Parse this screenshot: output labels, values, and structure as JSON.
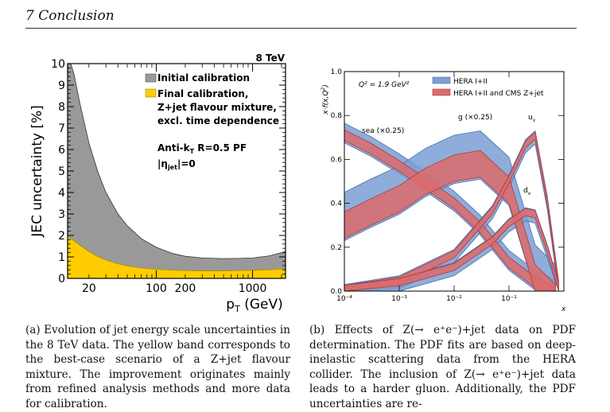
{
  "header": {
    "section": "7 Conclusion"
  },
  "figure_a": {
    "energy_label": "8 TeV",
    "ylabel": "JEC uncertainty [%]",
    "xlabel": "p_T (GeV)",
    "legend": [
      {
        "label": "Initial calibration",
        "color": "#999999"
      },
      {
        "label": "Final calibration,",
        "color": "#ffcc00"
      }
    ],
    "legend_cont": [
      "Z+jet flavour mixture,",
      "excl. time dependence"
    ],
    "algo": "Anti-k_T R=0.5 PF",
    "eta": "|η_jet|=0",
    "y_ticks": [
      "0",
      "1",
      "2",
      "3",
      "4",
      "5",
      "6",
      "7",
      "8",
      "9",
      "10"
    ],
    "x_ticks": [
      "20",
      "100",
      "200",
      "1000"
    ]
  },
  "figure_b": {
    "q2_label": "Q² = 1.9 GeV²",
    "ylabel": "x·f(x,Q²)",
    "xlabel": "x",
    "legend": [
      {
        "label": "HERA I+II",
        "color": "#7b9fd4"
      },
      {
        "label": "HERA I+II and CMS Z+jet",
        "color": "#dc6b6b"
      }
    ],
    "curve_labels": [
      "sea (×0.25)",
      "g (×0.25)",
      "u_v",
      "d_v"
    ],
    "y_ticks": [
      "0.0",
      "0.2",
      "0.4",
      "0.6",
      "0.8",
      "1.0"
    ],
    "x_ticks": [
      "10⁻⁴",
      "10⁻³",
      "10⁻²",
      "10⁻¹"
    ]
  },
  "chart_data": [
    {
      "type": "area",
      "title": "8 TeV",
      "xlabel": "p_T (GeV)",
      "ylabel": "JEC uncertainty [%]",
      "xscale": "log",
      "xlim": [
        12,
        2200
      ],
      "ylim": [
        0,
        10
      ],
      "series": [
        {
          "name": "Initial calibration",
          "x": [
            12,
            14,
            16,
            20,
            25,
            30,
            40,
            50,
            70,
            100,
            150,
            200,
            300,
            500,
            700,
            1000,
            1500,
            2200
          ],
          "values": [
            10.5,
            9.5,
            8.2,
            6.3,
            4.9,
            4.0,
            3.0,
            2.45,
            1.85,
            1.45,
            1.15,
            1.03,
            0.95,
            0.92,
            0.93,
            0.95,
            1.05,
            1.25
          ]
        },
        {
          "name": "Final calibration, Z+jet flavour mixture, excl. time dependence",
          "x": [
            12,
            14,
            16,
            20,
            25,
            30,
            40,
            50,
            70,
            100,
            150,
            200,
            300,
            500,
            700,
            1000,
            1500,
            2200
          ],
          "values": [
            1.95,
            1.75,
            1.55,
            1.25,
            1.0,
            0.85,
            0.68,
            0.58,
            0.48,
            0.42,
            0.38,
            0.36,
            0.35,
            0.35,
            0.36,
            0.38,
            0.4,
            0.45
          ]
        }
      ]
    },
    {
      "type": "line",
      "xlabel": "x",
      "ylabel": "x·f(x,Q²)",
      "xscale": "log",
      "xlim": [
        0.0001,
        1
      ],
      "ylim": [
        0,
        1.0
      ],
      "series": [
        {
          "name": "sea (×0.25) HERA I+II",
          "x": [
            0.0001,
            0.0003,
            0.001,
            0.003,
            0.01,
            0.03,
            0.1,
            0.3,
            0.7
          ],
          "values": [
            0.72,
            0.66,
            0.58,
            0.5,
            0.41,
            0.3,
            0.14,
            0.05,
            0.005
          ]
        },
        {
          "name": "g (×0.25) HERA I+II",
          "x": [
            0.0001,
            0.0003,
            0.001,
            0.003,
            0.01,
            0.03,
            0.1,
            0.3,
            0.7
          ],
          "values": [
            0.34,
            0.4,
            0.46,
            0.54,
            0.6,
            0.62,
            0.5,
            0.1,
            0.01
          ]
        },
        {
          "name": "u_v HERA I+II",
          "x": [
            0.0001,
            0.001,
            0.01,
            0.05,
            0.1,
            0.2,
            0.3,
            0.5,
            0.8
          ],
          "values": [
            0.0,
            0.04,
            0.16,
            0.36,
            0.5,
            0.66,
            0.7,
            0.4,
            0.02
          ]
        },
        {
          "name": "d_v HERA I+II",
          "x": [
            0.0001,
            0.001,
            0.01,
            0.05,
            0.1,
            0.2,
            0.3,
            0.5,
            0.8
          ],
          "values": [
            0.0,
            0.03,
            0.1,
            0.22,
            0.3,
            0.35,
            0.34,
            0.18,
            0.01
          ]
        }
      ]
    }
  ],
  "captions": {
    "a": "(a) Evolution of jet energy scale uncertainties in the 8 TeV data. The yellow band corresponds to the best-case scenario of a Z+jet flavour mixture. The improvement originates mainly from refined analysis methods and more data for calibration.",
    "b": "(b) Effects of Z(→ e⁺e⁻)+jet data on PDF determination. The PDF fits are based on deep-inelastic scattering data from the HERA collider. The inclusion of Z(→ e⁺e⁻)+jet data leads to a harder gluon. Additionally, the PDF uncertainties are re-"
  }
}
